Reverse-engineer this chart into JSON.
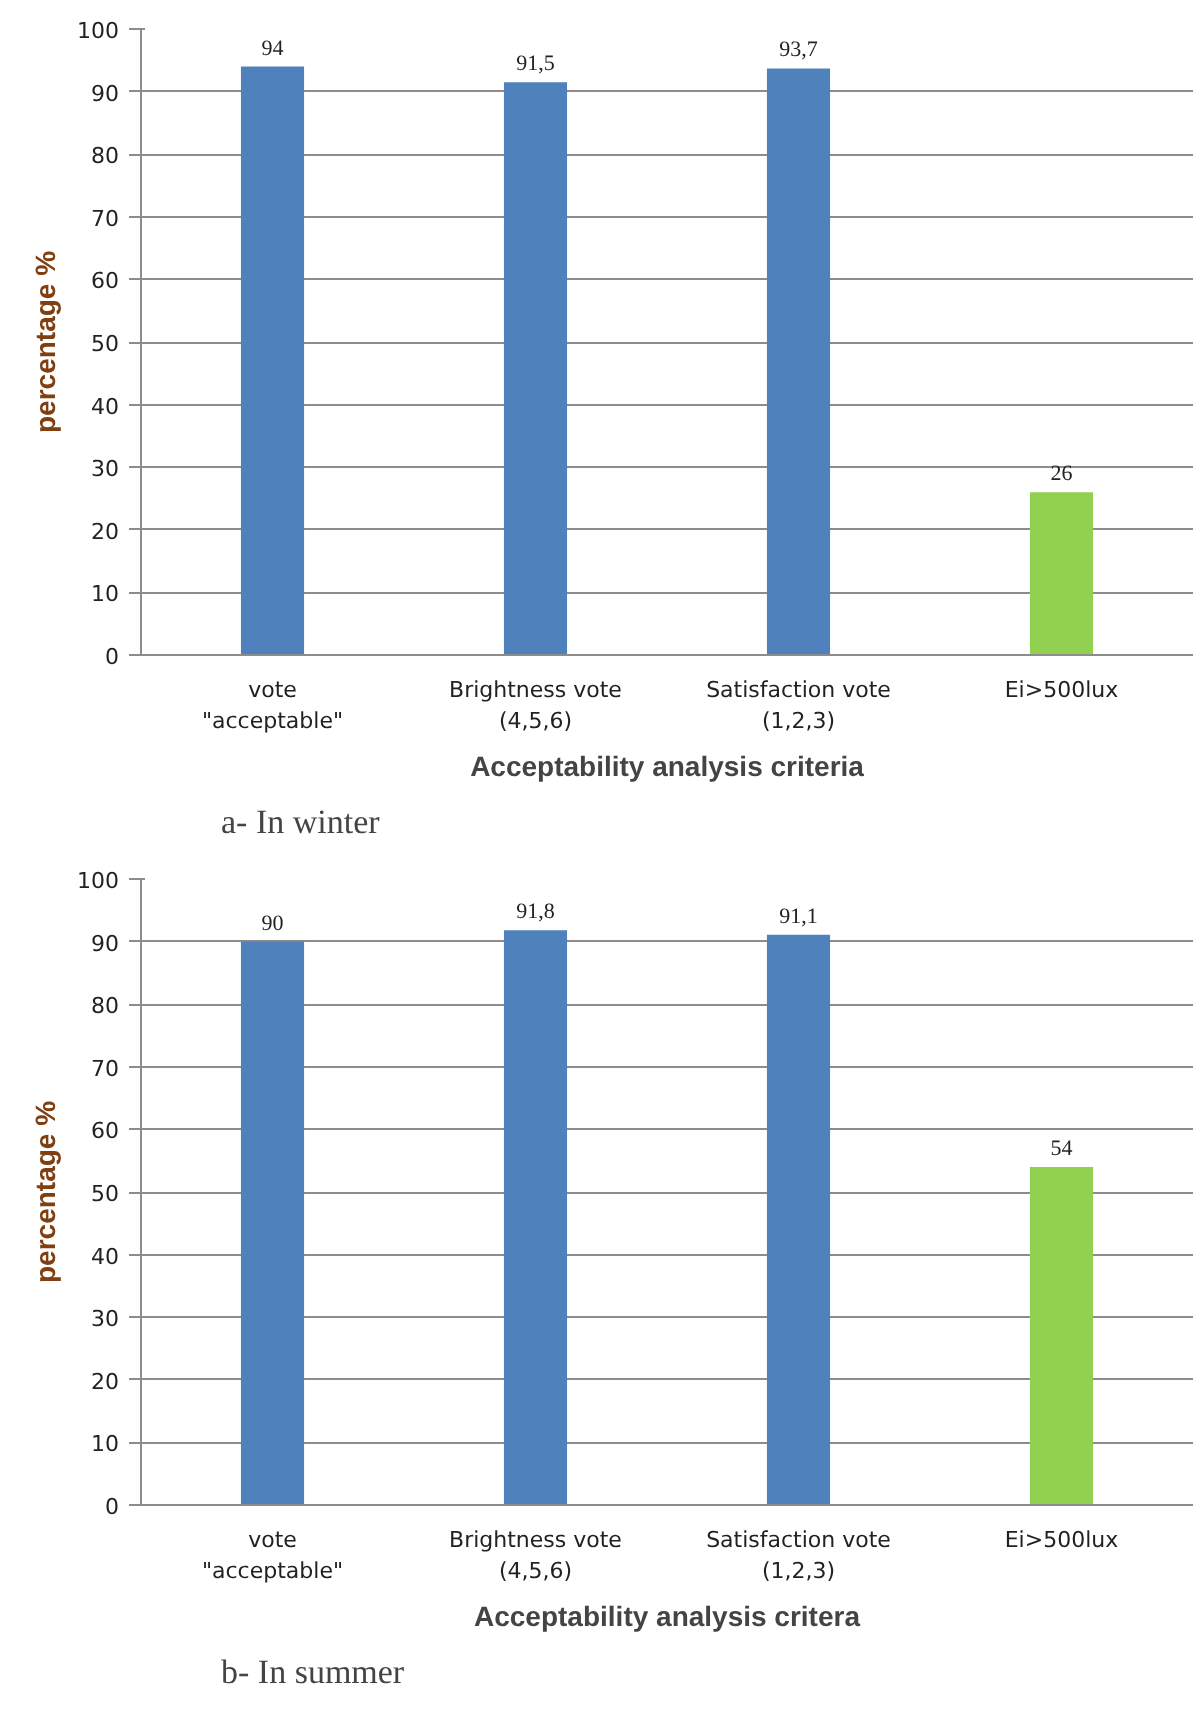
{
  "chart_data": [
    {
      "type": "bar",
      "categories": [
        "vote\n\"acceptable\"",
        "Brightness vote\n(4,5,6)",
        "Satisfaction vote\n(1,2,3)",
        "Ei>500lux"
      ],
      "values": [
        94,
        91.5,
        93.7,
        26
      ],
      "colors": [
        "#4f81bd",
        "#4f81bd",
        "#4f81bd",
        "#92d050"
      ],
      "value_labels": [
        "94",
        "91,5",
        "93,7",
        "26"
      ],
      "xlabel": "Acceptability analysis criteria",
      "ylabel": "percentage %",
      "ylim": [
        0,
        100
      ],
      "yticks": [
        0,
        10,
        20,
        30,
        40,
        50,
        60,
        70,
        80,
        90,
        100
      ],
      "grid": "y",
      "annotations": [
        "a-    In winter"
      ]
    },
    {
      "type": "bar",
      "categories": [
        "vote\n\"acceptable\"",
        "Brightness vote\n(4,5,6)",
        "Satisfaction vote\n(1,2,3)",
        "Ei>500lux"
      ],
      "values": [
        90,
        91.8,
        91.1,
        54
      ],
      "colors": [
        "#4f81bd",
        "#4f81bd",
        "#4f81bd",
        "#92d050"
      ],
      "value_labels": [
        "90",
        "91,8",
        "91,1",
        "54"
      ],
      "xlabel": "Acceptability analysis critera",
      "ylabel": "percentage %",
      "ylim": [
        0,
        100
      ],
      "yticks": [
        0,
        10,
        20,
        30,
        40,
        50,
        60,
        70,
        80,
        90,
        100
      ],
      "grid": "y",
      "annotations": [
        "b-    In summer"
      ]
    }
  ]
}
